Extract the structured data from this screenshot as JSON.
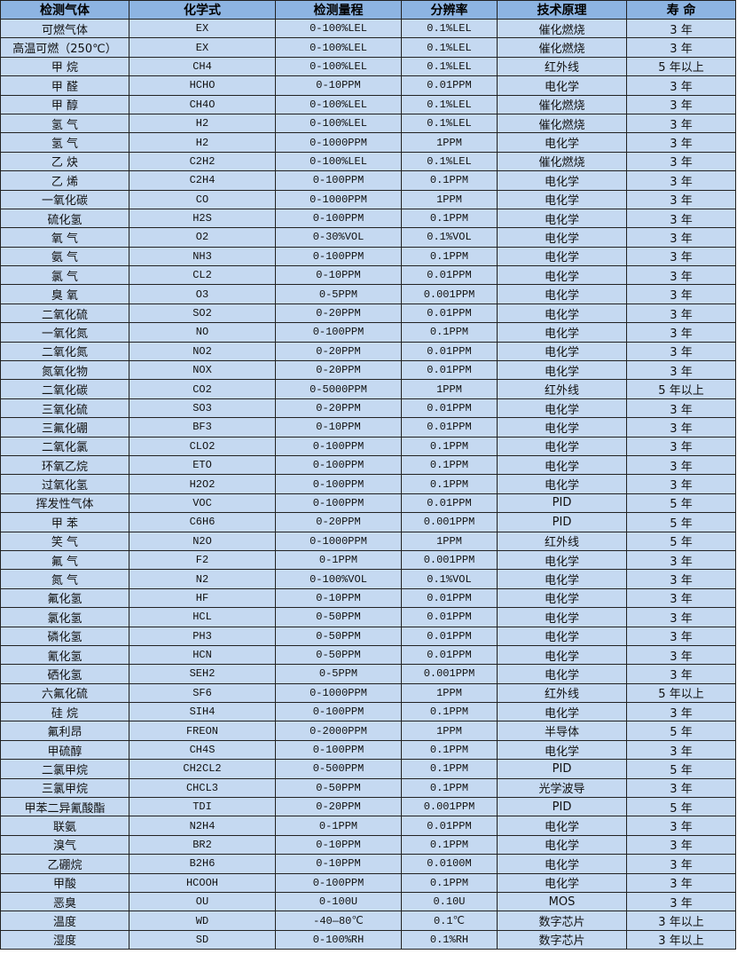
{
  "colors": {
    "header_bg": "#8DB4E2",
    "row_bg": "#C5D9F1",
    "border": "#222222"
  },
  "headers": [
    "检测气体",
    "化学式",
    "检测量程",
    "分辨率",
    "技术原理",
    "寿 命"
  ],
  "rows": [
    [
      "可燃气体",
      "EX",
      "0-100%LEL",
      "0.1%LEL",
      "催化燃烧",
      "3 年"
    ],
    [
      "高温可燃（250℃）",
      "EX",
      "0-100%LEL",
      "0.1%LEL",
      "催化燃烧",
      "3 年"
    ],
    [
      "甲 烷",
      "CH4",
      "0-100%LEL",
      "0.1%LEL",
      "红外线",
      "5 年以上"
    ],
    [
      "甲 醛",
      "HCHO",
      "0-10PPM",
      "0.01PPM",
      "电化学",
      "3 年"
    ],
    [
      "甲 醇",
      "CH4O",
      "0-100%LEL",
      "0.1%LEL",
      "催化燃烧",
      "3 年"
    ],
    [
      "氢 气",
      "H2",
      "0-100%LEL",
      "0.1%LEL",
      "催化燃烧",
      "3 年"
    ],
    [
      "氢 气",
      "H2",
      "0-1000PPM",
      "1PPM",
      "电化学",
      "3 年"
    ],
    [
      "乙 炔",
      "C2H2",
      "0-100%LEL",
      "0.1%LEL",
      "催化燃烧",
      "3 年"
    ],
    [
      "乙 烯",
      "C2H4",
      "0-100PPM",
      "0.1PPM",
      "电化学",
      "3 年"
    ],
    [
      "一氧化碳",
      "CO",
      "0-1000PPM",
      "1PPM",
      "电化学",
      "3 年"
    ],
    [
      "硫化氢",
      "H2S",
      "0-100PPM",
      "0.1PPM",
      "电化学",
      "3 年"
    ],
    [
      "氧 气",
      "O2",
      "0-30%VOL",
      "0.1%VOL",
      "电化学",
      "3 年"
    ],
    [
      "氨 气",
      "NH3",
      "0-100PPM",
      "0.1PPM",
      "电化学",
      "3 年"
    ],
    [
      "氯 气",
      "CL2",
      "0-10PPM",
      "0.01PPM",
      "电化学",
      "3 年"
    ],
    [
      "臭 氧",
      "O3",
      "0-5PPM",
      "0.001PPM",
      "电化学",
      "3 年"
    ],
    [
      "二氧化硫",
      "SO2",
      "0-20PPM",
      "0.01PPM",
      "电化学",
      "3 年"
    ],
    [
      "一氧化氮",
      "NO",
      "0-100PPM",
      "0.1PPM",
      "电化学",
      "3 年"
    ],
    [
      "二氧化氮",
      "NO2",
      "0-20PPM",
      "0.01PPM",
      "电化学",
      "3 年"
    ],
    [
      "氮氧化物",
      "NOX",
      "0-20PPM",
      "0.01PPM",
      "电化学",
      "3 年"
    ],
    [
      "二氧化碳",
      "CO2",
      "0-5000PPM",
      "1PPM",
      "红外线",
      "5 年以上"
    ],
    [
      "三氧化硫",
      "SO3",
      "0-20PPM",
      "0.01PPM",
      "电化学",
      "3 年"
    ],
    [
      "三氟化硼",
      "BF3",
      "0-10PPM",
      "0.01PPM",
      "电化学",
      "3 年"
    ],
    [
      "二氧化氯",
      "CLO2",
      "0-100PPM",
      "0.1PPM",
      "电化学",
      "3 年"
    ],
    [
      "环氧乙烷",
      "ETO",
      "0-100PPM",
      "0.1PPM",
      "电化学",
      "3 年"
    ],
    [
      "过氧化氢",
      "H2O2",
      "0-100PPM",
      "0.1PPM",
      "电化学",
      "3 年"
    ],
    [
      "挥发性气体",
      "VOC",
      "0-100PPM",
      "0.01PPM",
      "PID",
      "5 年"
    ],
    [
      "甲 苯",
      "C6H6",
      "0-20PPM",
      "0.001PPM",
      "PID",
      "5 年"
    ],
    [
      "笑 气",
      "N2O",
      "0-1000PPM",
      "1PPM",
      "红外线",
      "5 年"
    ],
    [
      "氟 气",
      "F2",
      "0-1PPM",
      "0.001PPM",
      "电化学",
      "3 年"
    ],
    [
      "氮 气",
      "N2",
      "0-100%VOL",
      "0.1%VOL",
      "电化学",
      "3 年"
    ],
    [
      "氟化氢",
      "HF",
      "0-10PPM",
      "0.01PPM",
      "电化学",
      "3 年"
    ],
    [
      "氯化氢",
      "HCL",
      "0-50PPM",
      "0.01PPM",
      "电化学",
      "3 年"
    ],
    [
      "磷化氢",
      "PH3",
      "0-50PPM",
      "0.01PPM",
      "电化学",
      "3 年"
    ],
    [
      "氰化氢",
      "HCN",
      "0-50PPM",
      "0.01PPM",
      "电化学",
      "3 年"
    ],
    [
      "硒化氢",
      "SEH2",
      "0-5PPM",
      "0.001PPM",
      "电化学",
      "3 年"
    ],
    [
      "六氟化硫",
      "SF6",
      "0-1000PPM",
      "1PPM",
      "红外线",
      "5 年以上"
    ],
    [
      "硅 烷",
      "SIH4",
      "0-100PPM",
      "0.1PPM",
      "电化学",
      "3 年"
    ],
    [
      "氟利昂",
      "FREON",
      "0-2000PPM",
      "1PPM",
      "半导体",
      "5 年"
    ],
    [
      "甲硫醇",
      "CH4S",
      "0-100PPM",
      "0.1PPM",
      "电化学",
      "3 年"
    ],
    [
      "二氯甲烷",
      "CH2CL2",
      "0-500PPM",
      "0.1PPM",
      "PID",
      "5 年"
    ],
    [
      "三氯甲烷",
      "CHCL3",
      "0-50PPM",
      "0.1PPM",
      "光学波导",
      "3 年"
    ],
    [
      "甲苯二异氰酸酯",
      "TDI",
      "0-20PPM",
      "0.001PPM",
      "PID",
      "5 年"
    ],
    [
      "联氨",
      "N2H4",
      "0-1PPM",
      "0.01PPM",
      "电化学",
      "3 年"
    ],
    [
      "溴气",
      "BR2",
      "0-10PPM",
      "0.1PPM",
      "电化学",
      "3 年"
    ],
    [
      "乙硼烷",
      "B2H6",
      "0-10PPM",
      "0.0100M",
      "电化学",
      "3 年"
    ],
    [
      "甲酸",
      "HCOOH",
      "0-100PPM",
      "0.1PPM",
      "电化学",
      "3 年"
    ],
    [
      "恶臭",
      "OU",
      "0-100U",
      "0.10U",
      "MOS",
      "3 年"
    ],
    [
      "温度",
      "WD",
      "-40—80℃",
      "0.1℃",
      "数字芯片",
      "3 年以上"
    ],
    [
      "湿度",
      "SD",
      "0-100%RH",
      "0.1%RH",
      "数字芯片",
      "3 年以上"
    ]
  ]
}
